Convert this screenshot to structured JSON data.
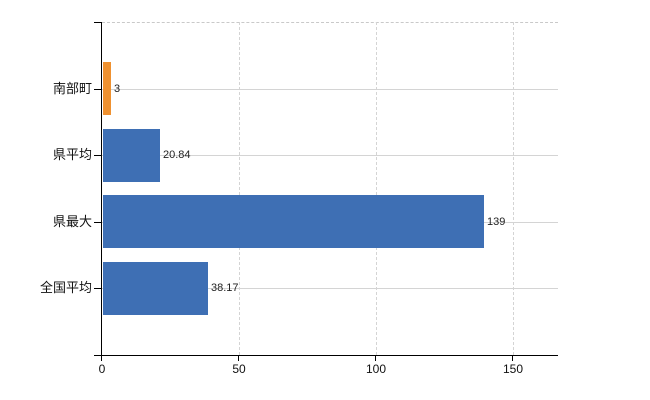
{
  "chart_data": {
    "type": "bar",
    "orientation": "horizontal",
    "title": "",
    "categories": [
      "南部町",
      "県平均",
      "県最大",
      "全国平均"
    ],
    "series": [
      {
        "name": "value",
        "values": [
          3,
          20.84,
          139,
          38.17
        ]
      }
    ],
    "value_labels": [
      "3",
      "20.84",
      "139",
      "38.17"
    ],
    "bar_colors": [
      "#ef9130",
      "#3e6fb4",
      "#3e6fb4",
      "#3e6fb4"
    ],
    "x_axis": {
      "ticks": [
        0,
        50,
        100,
        150
      ],
      "tick_labels": [
        "0",
        "50",
        "100",
        "150"
      ],
      "range": [
        0,
        166.4
      ]
    },
    "y_axis": {
      "label": ""
    },
    "grid": {
      "vertical_style": "dashed",
      "horizontal_style": "solid",
      "color": "#d4d4d4"
    },
    "legend": "none",
    "axis_color": "#000000",
    "value_text_color": "#222222",
    "category_text_color": "#111111",
    "background_color": "#ffffff"
  }
}
